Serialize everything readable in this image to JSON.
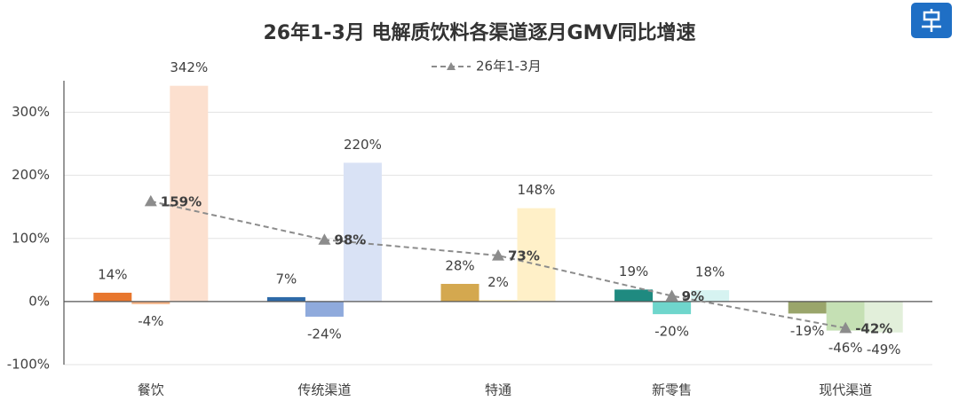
{
  "chart_data": {
    "type": "bar",
    "title": "26年1-3月 电解质饮料各渠道逐月GMV同比增速",
    "categories": [
      "餐饮",
      "传统渠道",
      "特通",
      "新零售",
      "现代渠道"
    ],
    "series": [
      {
        "values": [
          14,
          7,
          28,
          19,
          -19
        ],
        "value_labels": [
          "14%",
          "7%",
          "28%",
          "19%",
          "-19%"
        ],
        "colors": [
          "#e8772e",
          "#2e6aa8",
          "#d4a84f",
          "#1f8a80",
          "#9aa56b"
        ]
      },
      {
        "values": [
          -4,
          -24,
          2,
          -20,
          -46
        ],
        "value_labels": [
          "-4%",
          "-24%",
          "2%",
          "-20%",
          "-46%"
        ],
        "colors": [
          "#f4b183",
          "#8faadc",
          "#ffe699",
          "#6fd6cc",
          "#c5e0b4"
        ]
      },
      {
        "values": [
          342,
          220,
          148,
          18,
          -49
        ],
        "value_labels": [
          "342%",
          "220%",
          "148%",
          "18%",
          "-49%"
        ],
        "colors": [
          "#fce0cf",
          "#d9e2f5",
          "#fff0c8",
          "#d6f3f1",
          "#e2efda"
        ]
      },
      {
        "name": "26年1-3月",
        "type": "line",
        "color": "#8c8c8c",
        "values": [
          159,
          98,
          73,
          9,
          -42
        ],
        "value_labels": [
          "159%",
          "98%",
          "73%",
          "9%",
          "-42%"
        ]
      }
    ],
    "ylim": [
      -100,
      350
    ],
    "yticks": [
      {
        "value": -100,
        "label": "-100%"
      },
      {
        "value": 0,
        "label": "0%"
      },
      {
        "value": 100,
        "label": "100%"
      },
      {
        "value": 200,
        "label": "200%"
      },
      {
        "value": 300,
        "label": "300%"
      }
    ],
    "grid": true
  }
}
